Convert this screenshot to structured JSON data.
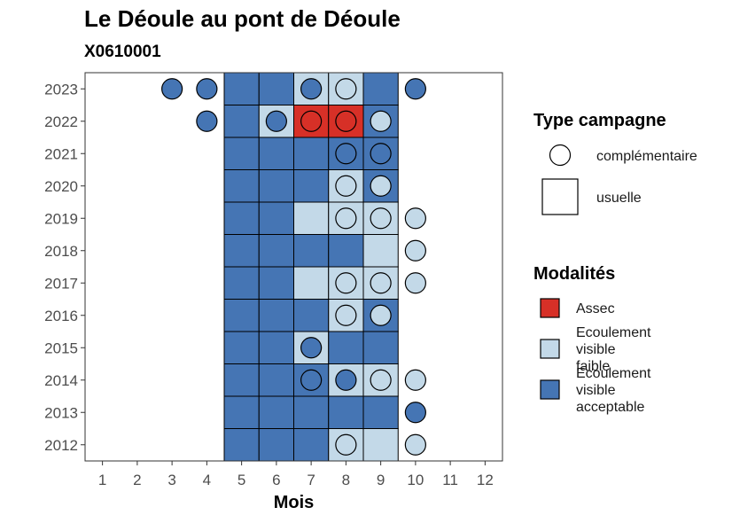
{
  "chart_data": {
    "type": "heatmap",
    "title": "Le Déoule au pont de Déoule",
    "subtitle": "X0610001",
    "xlabel": "Mois",
    "ylabel": "",
    "x_ticks": [
      "1",
      "2",
      "3",
      "4",
      "5",
      "6",
      "7",
      "8",
      "9",
      "10",
      "11",
      "12"
    ],
    "y_ticks": [
      "2023",
      "2022",
      "2021",
      "2020",
      "2019",
      "2018",
      "2017",
      "2016",
      "2015",
      "2014",
      "2013",
      "2012"
    ],
    "colors": {
      "Assec": "#d73027",
      "Ecoulement visible faible": "#c3d9e8",
      "Ecoulement visible acceptable": "#4575b4"
    },
    "usuelle": [
      {
        "year": 2023,
        "month": 5,
        "modalite": "Ecoulement visible acceptable"
      },
      {
        "year": 2023,
        "month": 6,
        "modalite": "Ecoulement visible acceptable"
      },
      {
        "year": 2023,
        "month": 7,
        "modalite": "Ecoulement visible faible"
      },
      {
        "year": 2023,
        "month": 8,
        "modalite": "Ecoulement visible faible"
      },
      {
        "year": 2023,
        "month": 9,
        "modalite": "Ecoulement visible acceptable"
      },
      {
        "year": 2022,
        "month": 5,
        "modalite": "Ecoulement visible acceptable"
      },
      {
        "year": 2022,
        "month": 6,
        "modalite": "Ecoulement visible faible"
      },
      {
        "year": 2022,
        "month": 7,
        "modalite": "Assec"
      },
      {
        "year": 2022,
        "month": 8,
        "modalite": "Assec"
      },
      {
        "year": 2022,
        "month": 9,
        "modalite": "Ecoulement visible acceptable"
      },
      {
        "year": 2021,
        "month": 5,
        "modalite": "Ecoulement visible acceptable"
      },
      {
        "year": 2021,
        "month": 6,
        "modalite": "Ecoulement visible acceptable"
      },
      {
        "year": 2021,
        "month": 7,
        "modalite": "Ecoulement visible acceptable"
      },
      {
        "year": 2021,
        "month": 8,
        "modalite": "Ecoulement visible acceptable"
      },
      {
        "year": 2021,
        "month": 9,
        "modalite": "Ecoulement visible acceptable"
      },
      {
        "year": 2020,
        "month": 5,
        "modalite": "Ecoulement visible acceptable"
      },
      {
        "year": 2020,
        "month": 6,
        "modalite": "Ecoulement visible acceptable"
      },
      {
        "year": 2020,
        "month": 7,
        "modalite": "Ecoulement visible acceptable"
      },
      {
        "year": 2020,
        "month": 8,
        "modalite": "Ecoulement visible faible"
      },
      {
        "year": 2020,
        "month": 9,
        "modalite": "Ecoulement visible acceptable"
      },
      {
        "year": 2019,
        "month": 5,
        "modalite": "Ecoulement visible acceptable"
      },
      {
        "year": 2019,
        "month": 6,
        "modalite": "Ecoulement visible acceptable"
      },
      {
        "year": 2019,
        "month": 7,
        "modalite": "Ecoulement visible faible"
      },
      {
        "year": 2019,
        "month": 8,
        "modalite": "Ecoulement visible faible"
      },
      {
        "year": 2019,
        "month": 9,
        "modalite": "Ecoulement visible faible"
      },
      {
        "year": 2018,
        "month": 5,
        "modalite": "Ecoulement visible acceptable"
      },
      {
        "year": 2018,
        "month": 6,
        "modalite": "Ecoulement visible acceptable"
      },
      {
        "year": 2018,
        "month": 7,
        "modalite": "Ecoulement visible acceptable"
      },
      {
        "year": 2018,
        "month": 8,
        "modalite": "Ecoulement visible acceptable"
      },
      {
        "year": 2018,
        "month": 9,
        "modalite": "Ecoulement visible faible"
      },
      {
        "year": 2017,
        "month": 5,
        "modalite": "Ecoulement visible acceptable"
      },
      {
        "year": 2017,
        "month": 6,
        "modalite": "Ecoulement visible acceptable"
      },
      {
        "year": 2017,
        "month": 7,
        "modalite": "Ecoulement visible faible"
      },
      {
        "year": 2017,
        "month": 8,
        "modalite": "Ecoulement visible faible"
      },
      {
        "year": 2017,
        "month": 9,
        "modalite": "Ecoulement visible faible"
      },
      {
        "year": 2016,
        "month": 5,
        "modalite": "Ecoulement visible acceptable"
      },
      {
        "year": 2016,
        "month": 6,
        "modalite": "Ecoulement visible acceptable"
      },
      {
        "year": 2016,
        "month": 7,
        "modalite": "Ecoulement visible acceptable"
      },
      {
        "year": 2016,
        "month": 8,
        "modalite": "Ecoulement visible faible"
      },
      {
        "year": 2016,
        "month": 9,
        "modalite": "Ecoulement visible acceptable"
      },
      {
        "year": 2015,
        "month": 5,
        "modalite": "Ecoulement visible acceptable"
      },
      {
        "year": 2015,
        "month": 6,
        "modalite": "Ecoulement visible acceptable"
      },
      {
        "year": 2015,
        "month": 7,
        "modalite": "Ecoulement visible faible"
      },
      {
        "year": 2015,
        "month": 8,
        "modalite": "Ecoulement visible acceptable"
      },
      {
        "year": 2015,
        "month": 9,
        "modalite": "Ecoulement visible acceptable"
      },
      {
        "year": 2014,
        "month": 5,
        "modalite": "Ecoulement visible acceptable"
      },
      {
        "year": 2014,
        "month": 6,
        "modalite": "Ecoulement visible acceptable"
      },
      {
        "year": 2014,
        "month": 7,
        "modalite": "Ecoulement visible acceptable"
      },
      {
        "year": 2014,
        "month": 8,
        "modalite": "Ecoulement visible faible"
      },
      {
        "year": 2014,
        "month": 9,
        "modalite": "Ecoulement visible faible"
      },
      {
        "year": 2013,
        "month": 5,
        "modalite": "Ecoulement visible acceptable"
      },
      {
        "year": 2013,
        "month": 6,
        "modalite": "Ecoulement visible acceptable"
      },
      {
        "year": 2013,
        "month": 7,
        "modalite": "Ecoulement visible acceptable"
      },
      {
        "year": 2013,
        "month": 8,
        "modalite": "Ecoulement visible acceptable"
      },
      {
        "year": 2013,
        "month": 9,
        "modalite": "Ecoulement visible acceptable"
      },
      {
        "year": 2012,
        "month": 5,
        "modalite": "Ecoulement visible acceptable"
      },
      {
        "year": 2012,
        "month": 6,
        "modalite": "Ecoulement visible acceptable"
      },
      {
        "year": 2012,
        "month": 7,
        "modalite": "Ecoulement visible acceptable"
      },
      {
        "year": 2012,
        "month": 8,
        "modalite": "Ecoulement visible faible"
      },
      {
        "year": 2012,
        "month": 9,
        "modalite": "Ecoulement visible faible"
      }
    ],
    "complementaire": [
      {
        "year": 2023,
        "month": 3,
        "modalite": "Ecoulement visible acceptable"
      },
      {
        "year": 2023,
        "month": 4,
        "modalite": "Ecoulement visible acceptable"
      },
      {
        "year": 2023,
        "month": 7,
        "modalite": "Ecoulement visible acceptable"
      },
      {
        "year": 2023,
        "month": 8,
        "modalite": "Ecoulement visible faible"
      },
      {
        "year": 2023,
        "month": 10,
        "modalite": "Ecoulement visible acceptable"
      },
      {
        "year": 2022,
        "month": 4,
        "modalite": "Ecoulement visible acceptable"
      },
      {
        "year": 2022,
        "month": 6,
        "modalite": "Ecoulement visible acceptable"
      },
      {
        "year": 2022,
        "month": 7,
        "modalite": "Assec"
      },
      {
        "year": 2022,
        "month": 8,
        "modalite": "Assec"
      },
      {
        "year": 2022,
        "month": 9,
        "modalite": "Ecoulement visible faible"
      },
      {
        "year": 2021,
        "month": 8,
        "modalite": "Ecoulement visible acceptable"
      },
      {
        "year": 2021,
        "month": 9,
        "modalite": "Ecoulement visible acceptable"
      },
      {
        "year": 2020,
        "month": 8,
        "modalite": "Ecoulement visible faible"
      },
      {
        "year": 2020,
        "month": 9,
        "modalite": "Ecoulement visible faible"
      },
      {
        "year": 2019,
        "month": 8,
        "modalite": "Ecoulement visible faible"
      },
      {
        "year": 2019,
        "month": 9,
        "modalite": "Ecoulement visible faible"
      },
      {
        "year": 2019,
        "month": 10,
        "modalite": "Ecoulement visible faible"
      },
      {
        "year": 2018,
        "month": 10,
        "modalite": "Ecoulement visible faible"
      },
      {
        "year": 2017,
        "month": 8,
        "modalite": "Ecoulement visible faible"
      },
      {
        "year": 2017,
        "month": 9,
        "modalite": "Ecoulement visible faible"
      },
      {
        "year": 2017,
        "month": 10,
        "modalite": "Ecoulement visible faible"
      },
      {
        "year": 2016,
        "month": 8,
        "modalite": "Ecoulement visible faible"
      },
      {
        "year": 2016,
        "month": 9,
        "modalite": "Ecoulement visible faible"
      },
      {
        "year": 2015,
        "month": 7,
        "modalite": "Ecoulement visible acceptable"
      },
      {
        "year": 2014,
        "month": 7,
        "modalite": "Ecoulement visible acceptable"
      },
      {
        "year": 2014,
        "month": 8,
        "modalite": "Ecoulement visible acceptable"
      },
      {
        "year": 2014,
        "month": 9,
        "modalite": "Ecoulement visible faible"
      },
      {
        "year": 2014,
        "month": 10,
        "modalite": "Ecoulement visible faible"
      },
      {
        "year": 2013,
        "month": 10,
        "modalite": "Ecoulement visible acceptable"
      },
      {
        "year": 2012,
        "month": 8,
        "modalite": "Ecoulement visible faible"
      },
      {
        "year": 2012,
        "month": 10,
        "modalite": "Ecoulement visible faible"
      }
    ],
    "legend": {
      "type_title": "Type campagne",
      "type_items": [
        "complémentaire",
        "usuelle"
      ],
      "modalites_title": "Modalités",
      "modalites_items": [
        {
          "key": "Assec",
          "lines": [
            "Assec"
          ]
        },
        {
          "key": "Ecoulement visible faible",
          "lines": [
            "Ecoulement",
            "visible",
            "faible"
          ]
        },
        {
          "key": "Ecoulement visible acceptable",
          "lines": [
            "Ecoulement",
            "visible",
            "acceptable"
          ]
        }
      ]
    }
  }
}
